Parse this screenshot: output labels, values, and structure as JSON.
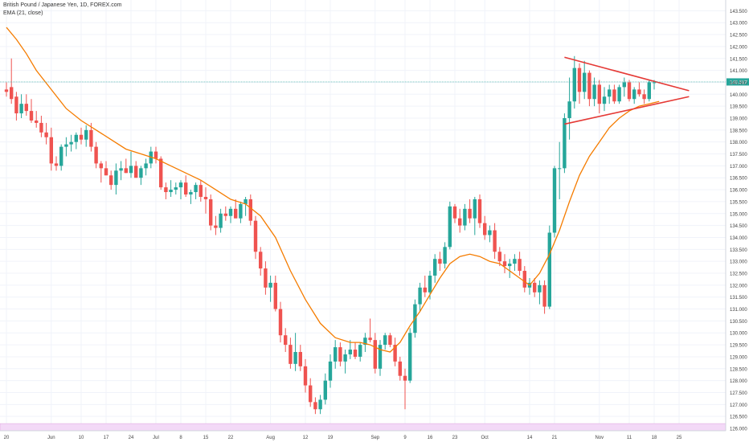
{
  "header": {
    "title": "British Pound / Japanese Yen, 1D, FOREX.com",
    "indicator": "EMA (21, close)"
  },
  "colors": {
    "up": "#26a69a",
    "down": "#ef5350",
    "ema": "#f57c00",
    "trendline": "#e53935",
    "price_line": "#26a69a",
    "price_label_bg": "#26a69a",
    "band": "#f3d9f7",
    "grid": "#f0f3fa",
    "axis_text": "#444444"
  },
  "chart_data": {
    "type": "candlestick",
    "symbol": "British Pound / Japanese Yen",
    "interval": "1D",
    "ylim": [
      125.9,
      143.95
    ],
    "y_ticks": [
      "126.000",
      "126.500",
      "127.000",
      "127.500",
      "128.000",
      "128.500",
      "129.000",
      "129.500",
      "130.000",
      "130.500",
      "131.000",
      "131.500",
      "132.000",
      "132.500",
      "133.000",
      "133.500",
      "134.000",
      "134.500",
      "135.000",
      "135.500",
      "136.000",
      "136.500",
      "137.000",
      "137.500",
      "138.000",
      "138.500",
      "139.000",
      "139.500",
      "140.000",
      "140.500",
      "141.000",
      "141.500",
      "142.000",
      "142.500",
      "143.000",
      "143.500"
    ],
    "x_ticks": [
      {
        "label": "20",
        "bar": 0
      },
      {
        "label": "Jun",
        "bar": 9
      },
      {
        "label": "10",
        "bar": 15
      },
      {
        "label": "17",
        "bar": 20
      },
      {
        "label": "24",
        "bar": 25
      },
      {
        "label": "Jul",
        "bar": 30
      },
      {
        "label": "8",
        "bar": 35
      },
      {
        "label": "15",
        "bar": 40
      },
      {
        "label": "22",
        "bar": 45
      },
      {
        "label": "Aug",
        "bar": 53
      },
      {
        "label": "12",
        "bar": 60
      },
      {
        "label": "19",
        "bar": 65
      },
      {
        "label": "Sep",
        "bar": 74
      },
      {
        "label": "9",
        "bar": 80
      },
      {
        "label": "16",
        "bar": 85
      },
      {
        "label": "23",
        "bar": 90
      },
      {
        "label": "Oct",
        "bar": 96
      },
      {
        "label": "14",
        "bar": 105
      },
      {
        "label": "21",
        "bar": 110
      },
      {
        "label": "Nov",
        "bar": 119
      },
      {
        "label": "11",
        "bar": 125
      },
      {
        "label": "18",
        "bar": 130
      },
      {
        "label": "25",
        "bar": 135
      }
    ],
    "bars": [
      {
        "o": 140.2,
        "h": 140.5,
        "l": 139.9,
        "c": 140.1
      },
      {
        "o": 140.3,
        "h": 141.5,
        "l": 139.6,
        "c": 139.8
      },
      {
        "o": 139.9,
        "h": 140.1,
        "l": 138.9,
        "c": 139.2
      },
      {
        "o": 139.2,
        "h": 140.0,
        "l": 139.0,
        "c": 139.6
      },
      {
        "o": 139.6,
        "h": 140.0,
        "l": 139.1,
        "c": 139.3
      },
      {
        "o": 139.3,
        "h": 139.8,
        "l": 138.8,
        "c": 138.9
      },
      {
        "o": 138.9,
        "h": 139.3,
        "l": 138.6,
        "c": 138.8
      },
      {
        "o": 138.8,
        "h": 139.1,
        "l": 138.2,
        "c": 138.4
      },
      {
        "o": 138.4,
        "h": 138.8,
        "l": 137.9,
        "c": 138.2
      },
      {
        "o": 138.2,
        "h": 138.6,
        "l": 136.8,
        "c": 137.1
      },
      {
        "o": 137.1,
        "h": 137.4,
        "l": 136.8,
        "c": 137.0
      },
      {
        "o": 137.0,
        "h": 137.9,
        "l": 136.8,
        "c": 137.8
      },
      {
        "o": 137.8,
        "h": 138.2,
        "l": 137.4,
        "c": 137.9
      },
      {
        "o": 137.9,
        "h": 138.3,
        "l": 137.6,
        "c": 138.0
      },
      {
        "o": 138.0,
        "h": 138.4,
        "l": 137.7,
        "c": 138.3
      },
      {
        "o": 138.3,
        "h": 138.6,
        "l": 137.9,
        "c": 138.1
      },
      {
        "o": 138.1,
        "h": 138.7,
        "l": 137.8,
        "c": 138.5
      },
      {
        "o": 138.5,
        "h": 138.8,
        "l": 137.6,
        "c": 137.8
      },
      {
        "o": 137.8,
        "h": 138.0,
        "l": 136.9,
        "c": 137.1
      },
      {
        "o": 137.1,
        "h": 137.2,
        "l": 136.3,
        "c": 136.9
      },
      {
        "o": 136.9,
        "h": 137.2,
        "l": 136.6,
        "c": 136.6
      },
      {
        "o": 136.6,
        "h": 136.8,
        "l": 136.0,
        "c": 136.2
      },
      {
        "o": 136.2,
        "h": 137.1,
        "l": 135.8,
        "c": 136.8
      },
      {
        "o": 136.8,
        "h": 137.2,
        "l": 136.4,
        "c": 136.9
      },
      {
        "o": 136.9,
        "h": 137.3,
        "l": 136.7,
        "c": 136.7
      },
      {
        "o": 136.7,
        "h": 137.6,
        "l": 136.5,
        "c": 137.0
      },
      {
        "o": 137.0,
        "h": 137.2,
        "l": 136.5,
        "c": 136.5
      },
      {
        "o": 136.5,
        "h": 137.0,
        "l": 136.2,
        "c": 136.9
      },
      {
        "o": 136.9,
        "h": 137.3,
        "l": 136.6,
        "c": 137.1
      },
      {
        "o": 137.1,
        "h": 137.8,
        "l": 136.9,
        "c": 137.6
      },
      {
        "o": 137.6,
        "h": 137.8,
        "l": 137.1,
        "c": 137.3
      },
      {
        "o": 137.3,
        "h": 137.4,
        "l": 136.0,
        "c": 136.1
      },
      {
        "o": 136.1,
        "h": 136.3,
        "l": 135.6,
        "c": 135.9
      },
      {
        "o": 135.9,
        "h": 136.4,
        "l": 135.7,
        "c": 136.0
      },
      {
        "o": 136.0,
        "h": 136.3,
        "l": 135.8,
        "c": 136.1
      },
      {
        "o": 136.1,
        "h": 136.4,
        "l": 135.6,
        "c": 136.3
      },
      {
        "o": 136.3,
        "h": 136.6,
        "l": 135.7,
        "c": 135.8
      },
      {
        "o": 135.8,
        "h": 136.0,
        "l": 135.4,
        "c": 135.9
      },
      {
        "o": 135.9,
        "h": 136.3,
        "l": 135.6,
        "c": 136.2
      },
      {
        "o": 136.2,
        "h": 136.4,
        "l": 135.5,
        "c": 135.7
      },
      {
        "o": 135.7,
        "h": 136.1,
        "l": 135.0,
        "c": 135.6
      },
      {
        "o": 135.6,
        "h": 135.8,
        "l": 134.3,
        "c": 134.5
      },
      {
        "o": 134.5,
        "h": 134.9,
        "l": 134.1,
        "c": 134.4
      },
      {
        "o": 134.4,
        "h": 135.2,
        "l": 134.2,
        "c": 135.0
      },
      {
        "o": 135.0,
        "h": 135.3,
        "l": 134.7,
        "c": 134.9
      },
      {
        "o": 134.9,
        "h": 135.3,
        "l": 134.6,
        "c": 135.2
      },
      {
        "o": 135.2,
        "h": 135.6,
        "l": 134.8,
        "c": 134.8
      },
      {
        "o": 134.8,
        "h": 135.5,
        "l": 134.6,
        "c": 135.4
      },
      {
        "o": 135.4,
        "h": 135.7,
        "l": 134.9,
        "c": 135.6
      },
      {
        "o": 135.6,
        "h": 135.8,
        "l": 134.5,
        "c": 134.7
      },
      {
        "o": 134.7,
        "h": 134.9,
        "l": 133.1,
        "c": 133.4
      },
      {
        "o": 133.4,
        "h": 133.6,
        "l": 132.4,
        "c": 132.7
      },
      {
        "o": 132.7,
        "h": 133.0,
        "l": 131.6,
        "c": 131.9
      },
      {
        "o": 131.9,
        "h": 132.4,
        "l": 131.3,
        "c": 132.1
      },
      {
        "o": 132.1,
        "h": 132.4,
        "l": 130.9,
        "c": 131.0
      },
      {
        "o": 131.0,
        "h": 131.3,
        "l": 129.6,
        "c": 129.9
      },
      {
        "o": 129.9,
        "h": 130.2,
        "l": 129.2,
        "c": 129.5
      },
      {
        "o": 129.5,
        "h": 129.8,
        "l": 128.5,
        "c": 128.7
      },
      {
        "o": 128.7,
        "h": 130.0,
        "l": 128.4,
        "c": 129.2
      },
      {
        "o": 129.2,
        "h": 129.5,
        "l": 128.4,
        "c": 128.6
      },
      {
        "o": 128.6,
        "h": 128.9,
        "l": 127.5,
        "c": 127.8
      },
      {
        "o": 127.8,
        "h": 128.1,
        "l": 126.9,
        "c": 127.1
      },
      {
        "o": 127.1,
        "h": 127.3,
        "l": 126.6,
        "c": 126.8
      },
      {
        "o": 126.8,
        "h": 127.4,
        "l": 126.6,
        "c": 127.2
      },
      {
        "o": 127.2,
        "h": 128.3,
        "l": 127.0,
        "c": 128.0
      },
      {
        "o": 128.0,
        "h": 129.1,
        "l": 127.7,
        "c": 128.8
      },
      {
        "o": 128.8,
        "h": 129.7,
        "l": 128.5,
        "c": 129.4
      },
      {
        "o": 129.4,
        "h": 129.6,
        "l": 128.6,
        "c": 128.8
      },
      {
        "o": 128.8,
        "h": 129.3,
        "l": 128.3,
        "c": 129.1
      },
      {
        "o": 129.1,
        "h": 129.7,
        "l": 128.9,
        "c": 129.3
      },
      {
        "o": 129.3,
        "h": 129.6,
        "l": 128.9,
        "c": 129.0
      },
      {
        "o": 129.0,
        "h": 129.6,
        "l": 128.8,
        "c": 129.5
      },
      {
        "o": 129.5,
        "h": 130.0,
        "l": 129.2,
        "c": 129.8
      },
      {
        "o": 129.8,
        "h": 130.6,
        "l": 129.6,
        "c": 129.7
      },
      {
        "o": 129.7,
        "h": 130.0,
        "l": 128.3,
        "c": 128.5
      },
      {
        "o": 128.5,
        "h": 129.7,
        "l": 128.2,
        "c": 129.5
      },
      {
        "o": 129.5,
        "h": 130.0,
        "l": 129.3,
        "c": 129.9
      },
      {
        "o": 129.9,
        "h": 130.0,
        "l": 129.4,
        "c": 129.5
      },
      {
        "o": 129.5,
        "h": 129.8,
        "l": 128.6,
        "c": 128.8
      },
      {
        "o": 128.8,
        "h": 129.0,
        "l": 128.0,
        "c": 128.2
      },
      {
        "o": 128.2,
        "h": 128.5,
        "l": 126.8,
        "c": 128.0
      },
      {
        "o": 128.0,
        "h": 130.2,
        "l": 127.9,
        "c": 130.0
      },
      {
        "o": 130.0,
        "h": 131.4,
        "l": 129.8,
        "c": 131.2
      },
      {
        "o": 131.2,
        "h": 132.1,
        "l": 130.9,
        "c": 131.9
      },
      {
        "o": 131.9,
        "h": 132.4,
        "l": 131.5,
        "c": 131.7
      },
      {
        "o": 131.7,
        "h": 132.6,
        "l": 131.4,
        "c": 132.4
      },
      {
        "o": 132.4,
        "h": 133.3,
        "l": 132.1,
        "c": 133.1
      },
      {
        "o": 133.1,
        "h": 133.4,
        "l": 132.6,
        "c": 132.9
      },
      {
        "o": 132.9,
        "h": 133.8,
        "l": 132.7,
        "c": 133.6
      },
      {
        "o": 133.6,
        "h": 135.5,
        "l": 133.5,
        "c": 135.3
      },
      {
        "o": 135.3,
        "h": 135.4,
        "l": 134.6,
        "c": 134.8
      },
      {
        "o": 134.8,
        "h": 135.2,
        "l": 134.2,
        "c": 134.5
      },
      {
        "o": 134.5,
        "h": 135.4,
        "l": 134.3,
        "c": 135.2
      },
      {
        "o": 135.2,
        "h": 135.6,
        "l": 134.6,
        "c": 134.8
      },
      {
        "o": 134.8,
        "h": 135.7,
        "l": 134.1,
        "c": 135.6
      },
      {
        "o": 135.6,
        "h": 135.8,
        "l": 134.4,
        "c": 134.6
      },
      {
        "o": 134.6,
        "h": 134.9,
        "l": 133.9,
        "c": 134.1
      },
      {
        "o": 134.1,
        "h": 134.5,
        "l": 133.8,
        "c": 134.3
      },
      {
        "o": 134.3,
        "h": 134.6,
        "l": 133.1,
        "c": 133.4
      },
      {
        "o": 133.4,
        "h": 133.6,
        "l": 132.8,
        "c": 133.0
      },
      {
        "o": 133.0,
        "h": 133.3,
        "l": 132.5,
        "c": 132.8
      },
      {
        "o": 132.8,
        "h": 133.1,
        "l": 132.3,
        "c": 132.9
      },
      {
        "o": 132.9,
        "h": 133.3,
        "l": 132.6,
        "c": 133.1
      },
      {
        "o": 133.1,
        "h": 133.4,
        "l": 132.4,
        "c": 132.6
      },
      {
        "o": 132.6,
        "h": 132.8,
        "l": 131.7,
        "c": 131.9
      },
      {
        "o": 131.9,
        "h": 132.3,
        "l": 131.6,
        "c": 132.1
      },
      {
        "o": 132.1,
        "h": 132.3,
        "l": 131.5,
        "c": 131.7
      },
      {
        "o": 131.7,
        "h": 132.2,
        "l": 131.2,
        "c": 132.0
      },
      {
        "o": 132.0,
        "h": 132.2,
        "l": 130.8,
        "c": 131.1
      },
      {
        "o": 131.1,
        "h": 134.5,
        "l": 131.0,
        "c": 134.2
      },
      {
        "o": 134.2,
        "h": 137.0,
        "l": 134.0,
        "c": 136.9
      },
      {
        "o": 136.9,
        "h": 138.0,
        "l": 135.6,
        "c": 136.9
      },
      {
        "o": 136.9,
        "h": 139.2,
        "l": 136.7,
        "c": 139.0
      },
      {
        "o": 139.0,
        "h": 140.7,
        "l": 138.1,
        "c": 139.7
      },
      {
        "o": 139.7,
        "h": 141.6,
        "l": 139.4,
        "c": 141.1
      },
      {
        "o": 141.1,
        "h": 141.3,
        "l": 139.6,
        "c": 140.1
      },
      {
        "o": 140.1,
        "h": 141.4,
        "l": 139.8,
        "c": 140.9
      },
      {
        "o": 140.9,
        "h": 141.0,
        "l": 139.5,
        "c": 139.8
      },
      {
        "o": 139.8,
        "h": 140.7,
        "l": 139.5,
        "c": 140.4
      },
      {
        "o": 140.4,
        "h": 140.6,
        "l": 139.2,
        "c": 139.6
      },
      {
        "o": 139.6,
        "h": 140.3,
        "l": 139.3,
        "c": 139.9
      },
      {
        "o": 139.9,
        "h": 140.4,
        "l": 139.6,
        "c": 140.2
      },
      {
        "o": 140.2,
        "h": 140.4,
        "l": 139.6,
        "c": 139.7
      },
      {
        "o": 139.7,
        "h": 140.4,
        "l": 139.6,
        "c": 140.3
      },
      {
        "o": 140.3,
        "h": 140.7,
        "l": 139.9,
        "c": 140.5
      },
      {
        "o": 140.5,
        "h": 140.6,
        "l": 139.7,
        "c": 139.8
      },
      {
        "o": 139.8,
        "h": 140.3,
        "l": 139.6,
        "c": 140.2
      },
      {
        "o": 140.2,
        "h": 140.5,
        "l": 139.9,
        "c": 140.0
      },
      {
        "o": 140.0,
        "h": 140.2,
        "l": 139.6,
        "c": 139.8
      },
      {
        "o": 139.8,
        "h": 140.6,
        "l": 139.7,
        "c": 140.5
      },
      {
        "o": 140.5,
        "h": 140.6,
        "l": 140.2,
        "c": 140.5
      }
    ],
    "ema": {
      "name": "EMA (21, close)",
      "points": [
        [
          0,
          142.8
        ],
        [
          2,
          142.3
        ],
        [
          4,
          141.7
        ],
        [
          6,
          141.0
        ],
        [
          9,
          140.2
        ],
        [
          12,
          139.4
        ],
        [
          15,
          138.9
        ],
        [
          18,
          138.5
        ],
        [
          21,
          138.1
        ],
        [
          24,
          137.7
        ],
        [
          27,
          137.5
        ],
        [
          30,
          137.3
        ],
        [
          33,
          137.0
        ],
        [
          36,
          136.7
        ],
        [
          39,
          136.4
        ],
        [
          42,
          136.0
        ],
        [
          45,
          135.6
        ],
        [
          48,
          135.4
        ],
        [
          51,
          134.9
        ],
        [
          54,
          134.0
        ],
        [
          57,
          132.6
        ],
        [
          60,
          131.4
        ],
        [
          63,
          130.4
        ],
        [
          66,
          129.8
        ],
        [
          69,
          129.6
        ],
        [
          71,
          129.6
        ],
        [
          73,
          129.5
        ],
        [
          75,
          129.3
        ],
        [
          77,
          129.2
        ],
        [
          79,
          129.6
        ],
        [
          81,
          130.3
        ],
        [
          83,
          130.9
        ],
        [
          85,
          131.6
        ],
        [
          87,
          132.3
        ],
        [
          89,
          132.9
        ],
        [
          91,
          133.2
        ],
        [
          93,
          133.3
        ],
        [
          95,
          133.2
        ],
        [
          97,
          133.0
        ],
        [
          99,
          132.9
        ],
        [
          101,
          132.6
        ],
        [
          103,
          132.3
        ],
        [
          105,
          132.0
        ],
        [
          107,
          132.5
        ],
        [
          109,
          133.3
        ],
        [
          111,
          134.3
        ],
        [
          113,
          135.5
        ],
        [
          115,
          136.6
        ],
        [
          117,
          137.4
        ],
        [
          119,
          138.0
        ],
        [
          121,
          138.6
        ],
        [
          123,
          139.0
        ],
        [
          125,
          139.3
        ],
        [
          127,
          139.5
        ],
        [
          129,
          139.6
        ],
        [
          131,
          139.7
        ]
      ]
    },
    "trendlines": [
      {
        "from": [
          112,
          141.55
        ],
        "to": [
          137,
          140.15
        ]
      },
      {
        "from": [
          112,
          138.75
        ],
        "to": [
          137,
          139.9
        ]
      }
    ],
    "last_price": {
      "value": 140.517,
      "label": "140.517"
    }
  }
}
